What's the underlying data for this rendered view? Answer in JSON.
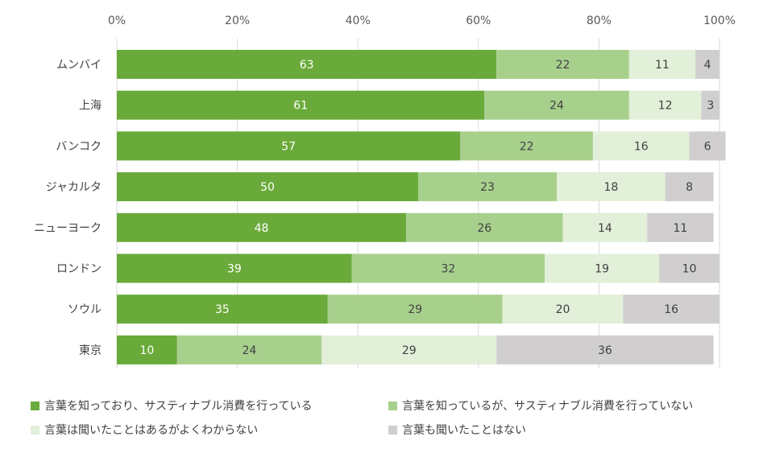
{
  "chart_data": {
    "type": "bar",
    "orientation": "horizontal",
    "stacked": true,
    "xlim": [
      0,
      100
    ],
    "x_ticks": [
      "0%",
      "20%",
      "40%",
      "60%",
      "80%",
      "100%"
    ],
    "x_tick_values": [
      0,
      20,
      40,
      60,
      80,
      100
    ],
    "grid": true,
    "legend_position": "bottom",
    "categories": [
      "ムンバイ",
      "上海",
      "バンコク",
      "ジャカルタ",
      "ニューヨーク",
      "ロンドン",
      "ソウル",
      "東京"
    ],
    "series": [
      {
        "name": "言葉を知っており、サスティナブル消費を行っている",
        "color": "#6aaa3a",
        "label_color": "#ffffff",
        "values": [
          63,
          61,
          57,
          50,
          48,
          39,
          35,
          10
        ]
      },
      {
        "name": "言葉を知っているが、サスティナブル消費を行っていない",
        "color": "#a8d08d",
        "label_color": "#404040",
        "values": [
          22,
          24,
          22,
          23,
          26,
          32,
          29,
          24
        ]
      },
      {
        "name": "言葉は聞いたことはあるがよくわからない",
        "color": "#e2efd9",
        "label_color": "#404040",
        "values": [
          11,
          12,
          16,
          18,
          14,
          19,
          20,
          29
        ]
      },
      {
        "name": "言葉も聞いたことはない",
        "color": "#d0cece",
        "label_color": "#404040",
        "values": [
          4,
          3,
          6,
          8,
          11,
          10,
          16,
          36
        ]
      }
    ]
  }
}
